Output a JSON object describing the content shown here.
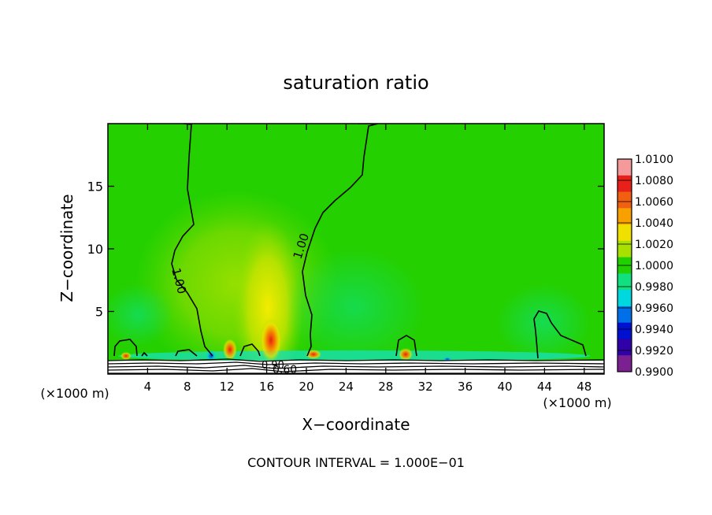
{
  "chart_data": {
    "type": "heatmap",
    "title": "saturation ratio",
    "xlabel": "X−coordinate",
    "ylabel": "Z−coordinate",
    "x_unit": "(×1000 m)",
    "z_unit": "(×1000 m)",
    "xlim": [
      0,
      50
    ],
    "ylim": [
      0,
      20
    ],
    "x_ticks": [
      "4",
      "8",
      "12",
      "16",
      "20",
      "24",
      "28",
      "32",
      "36",
      "40",
      "44",
      "48"
    ],
    "y_ticks": [
      "5",
      "10",
      "15"
    ],
    "footer": "CONTOUR INTERVAL = 1.000E−01",
    "colorbar": {
      "levels": [
        "1.0100",
        "1.0080",
        "1.0060",
        "1.0040",
        "1.0020",
        "1.0000",
        "0.9980",
        "0.9960",
        "0.9940",
        "0.9920",
        "0.9900"
      ],
      "colors": [
        "#f59a9a",
        "#e8201a",
        "#f06010",
        "#f8a000",
        "#f0e000",
        "#a8e000",
        "#20d000",
        "#10e080",
        "#00d8e0",
        "#0070e8",
        "#0010d0",
        "#3000a8",
        "#7a2090"
      ]
    },
    "contour_labels": [
      "1.00",
      "1.00",
      "0.90",
      "0.60"
    ],
    "background_value": 1.0,
    "features": [
      {
        "x": 16.5,
        "z": 3.0,
        "value": 1.008
      },
      {
        "x": 12.5,
        "z": 1.5,
        "value": 1.007
      },
      {
        "x": 30.0,
        "z": 1.3,
        "value": 1.006
      },
      {
        "x": 20.5,
        "z": 1.2,
        "value": 1.005
      },
      {
        "x": 10.5,
        "z": 1.4,
        "value": 0.993
      },
      {
        "x": 24.0,
        "z": 4.5,
        "value": 0.998
      },
      {
        "x": 44.0,
        "z": 4.0,
        "value": 0.998
      }
    ]
  }
}
